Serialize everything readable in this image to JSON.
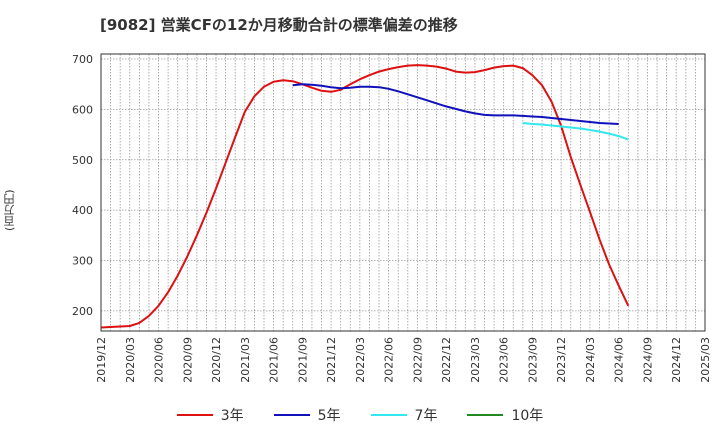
{
  "title": "[9082]  営業CFの12か月移動合計の標準偏差の推移",
  "chart_data": {
    "type": "line",
    "title": "[9082]  営業CFの12か月移動合計の標準偏差の推移",
    "ylabel": "(百万円)",
    "xlabel": "",
    "ylim": [
      160,
      710
    ],
    "yticks": [
      200,
      300,
      400,
      500,
      600,
      700
    ],
    "xlim": [
      "2019-12",
      "2025-03"
    ],
    "xticks": [
      "2019/12",
      "2020/03",
      "2020/06",
      "2020/09",
      "2020/12",
      "2021/03",
      "2021/06",
      "2021/09",
      "2021/12",
      "2022/03",
      "2022/06",
      "2022/09",
      "2022/12",
      "2023/03",
      "2023/06",
      "2023/09",
      "2023/12",
      "2024/03",
      "2024/06",
      "2024/09",
      "2024/12",
      "2025/03"
    ],
    "grid": true,
    "legend_position": "bottom",
    "series": [
      {
        "name": "3年",
        "color": "#dd1111",
        "points": [
          [
            "2019-12",
            167
          ],
          [
            "2020-01",
            168
          ],
          [
            "2020-02",
            169
          ],
          [
            "2020-03",
            170
          ],
          [
            "2020-04",
            176
          ],
          [
            "2020-05",
            190
          ],
          [
            "2020-06",
            210
          ],
          [
            "2020-07",
            237
          ],
          [
            "2020-08",
            270
          ],
          [
            "2020-09",
            308
          ],
          [
            "2020-10",
            350
          ],
          [
            "2020-11",
            395
          ],
          [
            "2020-12",
            443
          ],
          [
            "2021-01",
            494
          ],
          [
            "2021-02",
            545
          ],
          [
            "2021-03",
            595
          ],
          [
            "2021-04",
            626
          ],
          [
            "2021-05",
            645
          ],
          [
            "2021-06",
            655
          ],
          [
            "2021-07",
            658
          ],
          [
            "2021-08",
            656
          ],
          [
            "2021-09",
            650
          ],
          [
            "2021-10",
            643
          ],
          [
            "2021-11",
            637
          ],
          [
            "2021-12",
            635
          ],
          [
            "2022-01",
            639
          ],
          [
            "2022-02",
            650
          ],
          [
            "2022-03",
            660
          ],
          [
            "2022-04",
            668
          ],
          [
            "2022-05",
            675
          ],
          [
            "2022-06",
            680
          ],
          [
            "2022-07",
            684
          ],
          [
            "2022-08",
            687
          ],
          [
            "2022-09",
            688
          ],
          [
            "2022-10",
            687
          ],
          [
            "2022-11",
            685
          ],
          [
            "2022-12",
            681
          ],
          [
            "2023-01",
            675
          ],
          [
            "2023-02",
            673
          ],
          [
            "2023-03",
            674
          ],
          [
            "2023-04",
            678
          ],
          [
            "2023-05",
            683
          ],
          [
            "2023-06",
            686
          ],
          [
            "2023-07",
            687
          ],
          [
            "2023-08",
            682
          ],
          [
            "2023-09",
            668
          ],
          [
            "2023-10",
            648
          ],
          [
            "2023-11",
            615
          ],
          [
            "2023-12",
            567
          ],
          [
            "2024-01",
            505
          ],
          [
            "2024-02",
            450
          ],
          [
            "2024-03",
            396
          ],
          [
            "2024-04",
            342
          ],
          [
            "2024-05",
            292
          ],
          [
            "2024-06",
            250
          ],
          [
            "2024-07",
            210
          ]
        ]
      },
      {
        "name": "5年",
        "color": "#1111bb",
        "points": [
          [
            "2021-08",
            648
          ],
          [
            "2021-09",
            650
          ],
          [
            "2021-10",
            649
          ],
          [
            "2021-11",
            647
          ],
          [
            "2021-12",
            644
          ],
          [
            "2022-01",
            642
          ],
          [
            "2022-02",
            643
          ],
          [
            "2022-03",
            645
          ],
          [
            "2022-04",
            645
          ],
          [
            "2022-05",
            644
          ],
          [
            "2022-06",
            641
          ],
          [
            "2022-07",
            636
          ],
          [
            "2022-08",
            630
          ],
          [
            "2022-09",
            624
          ],
          [
            "2022-10",
            618
          ],
          [
            "2022-11",
            612
          ],
          [
            "2022-12",
            606
          ],
          [
            "2023-01",
            601
          ],
          [
            "2023-02",
            596
          ],
          [
            "2023-03",
            592
          ],
          [
            "2023-04",
            589
          ],
          [
            "2023-05",
            588
          ],
          [
            "2023-06",
            588
          ],
          [
            "2023-07",
            588
          ],
          [
            "2023-08",
            587
          ],
          [
            "2023-09",
            586
          ],
          [
            "2023-10",
            585
          ],
          [
            "2023-11",
            583
          ],
          [
            "2023-12",
            581
          ],
          [
            "2024-01",
            579
          ],
          [
            "2024-02",
            577
          ],
          [
            "2024-03",
            575
          ],
          [
            "2024-04",
            573
          ],
          [
            "2024-05",
            572
          ],
          [
            "2024-06",
            571
          ]
        ]
      },
      {
        "name": "7年",
        "color": "#33e8ee",
        "points": [
          [
            "2023-08",
            573
          ],
          [
            "2023-09",
            571
          ],
          [
            "2023-10",
            570
          ],
          [
            "2023-11",
            568
          ],
          [
            "2023-12",
            566
          ],
          [
            "2024-01",
            564
          ],
          [
            "2024-02",
            562
          ],
          [
            "2024-03",
            559
          ],
          [
            "2024-04",
            556
          ],
          [
            "2024-05",
            552
          ],
          [
            "2024-06",
            547
          ],
          [
            "2024-07",
            540
          ]
        ]
      },
      {
        "name": "10年",
        "color": "#228822",
        "points": []
      }
    ]
  }
}
